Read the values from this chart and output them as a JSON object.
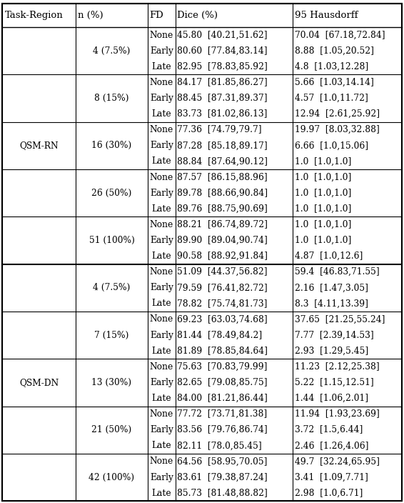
{
  "headers": [
    "Task-Region",
    "n (%)",
    "FD",
    "Dice (%)",
    "95 Hausdorff"
  ],
  "n_groups_rn": [
    [
      0,
      "4 (7.5%)"
    ],
    [
      3,
      "8 (15%)"
    ],
    [
      6,
      "16 (30%)"
    ],
    [
      9,
      "26 (50%)"
    ],
    [
      12,
      "51 (100%)"
    ]
  ],
  "n_groups_dn": [
    [
      15,
      "4 (7.5%)"
    ],
    [
      18,
      "7 (15%)"
    ],
    [
      21,
      "13 (30%)"
    ],
    [
      24,
      "21 (50%)"
    ],
    [
      27,
      "42 (100%)"
    ]
  ],
  "fd_vals": [
    "None",
    "Early",
    "Late",
    "None",
    "Early",
    "Late",
    "None",
    "Early",
    "Late",
    "None",
    "Early",
    "Late",
    "None",
    "Early",
    "Late",
    "None",
    "Early",
    "Late",
    "None",
    "Early",
    "Late",
    "None",
    "Early",
    "Late",
    "None",
    "Early",
    "Late",
    "None",
    "Early",
    "Late"
  ],
  "dice_vals": [
    "45.80  [40.21,51.62]",
    "80.60  [77.84,83.14]",
    "82.95  [78.83,85.92]",
    "84.17  [81.85,86.27]",
    "88.45  [87.31,89.37]",
    "83.73  [81.02,86.13]",
    "77.36  [74.79,79.7]",
    "87.28  [85.18,89.17]",
    "88.84  [87.64,90.12]",
    "87.57  [86.15,88.96]",
    "89.78  [88.66,90.84]",
    "89.76  [88.75,90.69]",
    "88.21  [86.74,89.72]",
    "89.90  [89.04,90.74]",
    "90.58  [88.92,91.84]",
    "51.09  [44.37,56.82]",
    "79.59  [76.41,82.72]",
    "78.82  [75.74,81.73]",
    "69.23  [63.03,74.68]",
    "81.44  [78.49,84.2]",
    "81.89  [78.85,84.64]",
    "75.63  [70.83,79.99]",
    "82.65  [79.08,85.75]",
    "84.00  [81.21,86.44]",
    "77.72  [73.71,81.38]",
    "83.56  [79.76,86.74]",
    "82.11  [78.0,85.45]",
    "64.56  [58.95,70.05]",
    "83.61  [79.38,87.24]",
    "85.73  [81.48,88.82]"
  ],
  "hd_vals": [
    "70.04  [67.18,72.84]",
    "8.88  [1.05,20.52]",
    "4.8  [1.03,12.28]",
    "5.66  [1.03,14.14]",
    "4.57  [1.0,11.72]",
    "12.94  [2.61,25.92]",
    "19.97  [8.03,32.88]",
    "6.66  [1.0,15.06]",
    "1.0  [1.0,1.0]",
    "1.0  [1.0,1.0]",
    "1.0  [1.0,1.0]",
    "1.0  [1.0,1.0]",
    "1.0  [1.0,1.0]",
    "1.0  [1.0,1.0]",
    "4.87  [1.0,12.6]",
    "59.4  [46.83,71.55]",
    "2.16  [1.47,3.05]",
    "8.3  [4.11,13.39]",
    "37.65  [21.25,55.24]",
    "7.77  [2.39,14.53]",
    "2.93  [1.29,5.45]",
    "11.23  [2.12,25.38]",
    "5.22  [1.15,12.51]",
    "1.44  [1.06,2.01]",
    "11.94  [1.93,23.69]",
    "3.72  [1.5,6.44]",
    "2.46  [1.26,4.06]",
    "49.7  [32.24,65.95]",
    "3.41  [1.09,7.71]",
    "2.98  [1.0,6.71]"
  ],
  "task_boundary_row": 15,
  "n_data_rows": 30,
  "figsize": [
    5.66,
    7.04
  ],
  "dpi": 100
}
